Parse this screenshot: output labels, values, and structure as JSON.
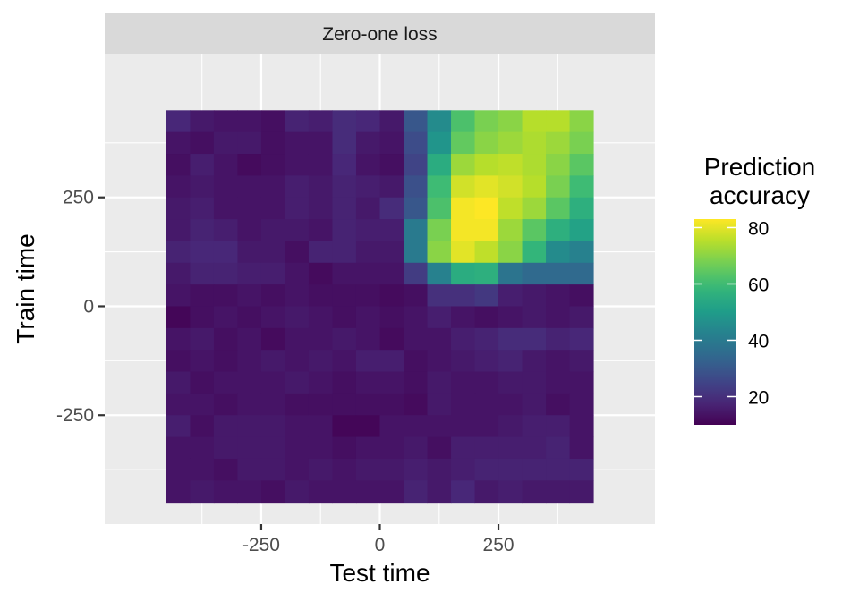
{
  "chart_data": {
    "type": "heatmap",
    "facet_title": "Zero-one loss",
    "xlabel": "Test time",
    "ylabel": "Train time",
    "x_ticks": [
      -250,
      0,
      250
    ],
    "x_tick_labels": [
      "-250",
      "0",
      "250"
    ],
    "y_ticks": [
      -250,
      0,
      250
    ],
    "y_tick_labels": [
      "-250",
      "0",
      "250"
    ],
    "xlim": [
      -580,
      580
    ],
    "ylim": [
      -500,
      580
    ],
    "grid": true,
    "x": [
      -425,
      -375,
      -325,
      -275,
      -225,
      -175,
      -125,
      -75,
      -25,
      25,
      75,
      125,
      175,
      225,
      275,
      325,
      375,
      425
    ],
    "y": [
      425,
      375,
      325,
      275,
      225,
      175,
      125,
      75,
      25,
      -25,
      -75,
      -125,
      -175,
      -225,
      -275,
      -325,
      -375,
      -425
    ],
    "z": [
      [
        18,
        15,
        14,
        14,
        13,
        17,
        16,
        19,
        18,
        15,
        30,
        45,
        62,
        68,
        70,
        75,
        75,
        70
      ],
      [
        14,
        13,
        15,
        15,
        13,
        14,
        14,
        19,
        15,
        14,
        27,
        48,
        65,
        70,
        72,
        74,
        72,
        68
      ],
      [
        13,
        16,
        14,
        12,
        13,
        14,
        14,
        18,
        14,
        13,
        25,
        55,
        72,
        75,
        76,
        74,
        70,
        64
      ],
      [
        14,
        15,
        14,
        14,
        14,
        16,
        15,
        17,
        16,
        15,
        28,
        60,
        78,
        80,
        78,
        75,
        68,
        60
      ],
      [
        15,
        16,
        14,
        14,
        14,
        16,
        15,
        17,
        15,
        19,
        30,
        62,
        82,
        83,
        76,
        72,
        64,
        56
      ],
      [
        15,
        17,
        16,
        14,
        15,
        15,
        14,
        17,
        16,
        16,
        40,
        68,
        82,
        82,
        72,
        64,
        56,
        52
      ],
      [
        17,
        18,
        18,
        15,
        15,
        13,
        17,
        17,
        15,
        15,
        40,
        70,
        80,
        76,
        70,
        58,
        45,
        42
      ],
      [
        15,
        17,
        17,
        16,
        16,
        14,
        12,
        14,
        14,
        14,
        23,
        42,
        55,
        56,
        38,
        35,
        35,
        35
      ],
      [
        14,
        13,
        13,
        14,
        13,
        14,
        13,
        13,
        13,
        12,
        13,
        20,
        20,
        22,
        16,
        15,
        14,
        13
      ],
      [
        11,
        13,
        14,
        13,
        14,
        15,
        14,
        13,
        14,
        13,
        14,
        16,
        14,
        13,
        14,
        15,
        14,
        15
      ],
      [
        14,
        15,
        13,
        14,
        12,
        14,
        14,
        15,
        14,
        12,
        14,
        14,
        16,
        17,
        19,
        19,
        17,
        18
      ],
      [
        13,
        14,
        13,
        14,
        15,
        14,
        15,
        14,
        16,
        16,
        13,
        14,
        15,
        16,
        17,
        15,
        14,
        15
      ],
      [
        15,
        13,
        14,
        14,
        14,
        15,
        14,
        13,
        14,
        14,
        13,
        15,
        14,
        14,
        15,
        15,
        14,
        14
      ],
      [
        14,
        14,
        13,
        14,
        14,
        13,
        13,
        13,
        13,
        13,
        12,
        15,
        14,
        14,
        14,
        15,
        13,
        14
      ],
      [
        16,
        13,
        15,
        15,
        15,
        14,
        14,
        11,
        11,
        14,
        14,
        14,
        14,
        14,
        15,
        16,
        16,
        14
      ],
      [
        14,
        14,
        15,
        15,
        15,
        14,
        14,
        13,
        14,
        14,
        15,
        13,
        16,
        16,
        16,
        16,
        17,
        14
      ],
      [
        14,
        14,
        13,
        15,
        15,
        14,
        15,
        14,
        15,
        15,
        16,
        15,
        16,
        17,
        17,
        17,
        17,
        17
      ],
      [
        14,
        15,
        14,
        14,
        13,
        15,
        14,
        14,
        14,
        14,
        17,
        15,
        18,
        15,
        16,
        15,
        15,
        15
      ]
    ],
    "legend": {
      "title": "Prediction\naccuracy",
      "title_lines": [
        "Prediction",
        "accuracy"
      ],
      "min": 10,
      "max": 83,
      "breaks": [
        20,
        40,
        60,
        80
      ],
      "break_labels": [
        "20",
        "40",
        "60",
        "80"
      ],
      "colormap": "viridis",
      "placement": "right"
    }
  },
  "colors": {
    "panel_bg": "#ebebeb",
    "grid_major": "#ffffff",
    "strip_bg": "#d9d9d9",
    "page_bg": "#ffffff"
  }
}
